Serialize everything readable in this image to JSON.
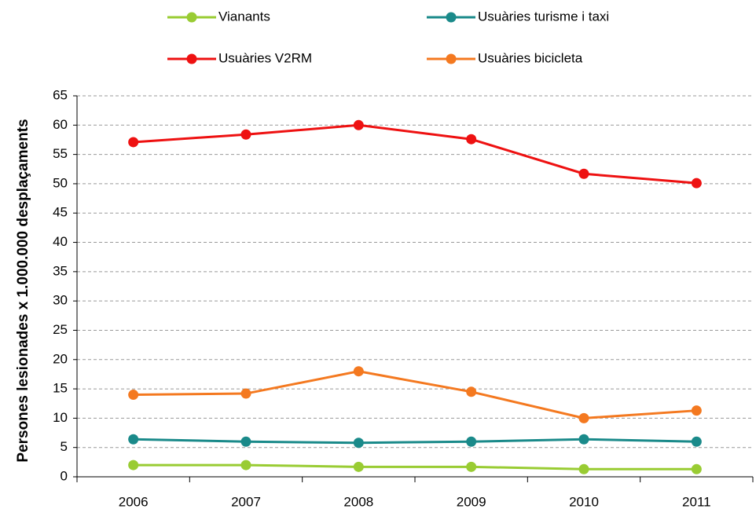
{
  "chart_data": {
    "type": "line",
    "y_label": "Persones lesionades x 1.000.000 desplaçaments",
    "categories": [
      "2006",
      "2007",
      "2008",
      "2009",
      "2010",
      "2011"
    ],
    "series": [
      {
        "name": "Vianants",
        "color": "#99cc33",
        "values": [
          2.0,
          2.0,
          1.7,
          1.7,
          1.3,
          1.3
        ]
      },
      {
        "name": "Usuàries turisme i taxi",
        "color": "#1a8a8a",
        "values": [
          6.4,
          6.0,
          5.8,
          6.0,
          6.4,
          6.0
        ]
      },
      {
        "name": "Usuàries V2RM",
        "color": "#ee1111",
        "values": [
          57.1,
          58.4,
          60.0,
          57.6,
          51.7,
          50.1
        ]
      },
      {
        "name": "Usuàries bicicleta",
        "color": "#f47920",
        "values": [
          14.0,
          14.2,
          18.0,
          14.5,
          10.0,
          11.3
        ]
      }
    ],
    "ylim": [
      0,
      65
    ],
    "yticks": [
      0,
      5,
      10,
      15,
      20,
      25,
      30,
      35,
      40,
      45,
      50,
      55,
      60,
      65
    ],
    "grid": true,
    "legend": "top"
  }
}
